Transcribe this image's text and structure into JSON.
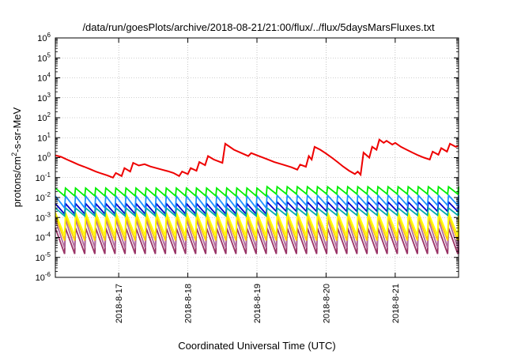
{
  "chart_data": {
    "type": "line",
    "title": "/data/run/goesPlots/archive/2018-08-21/21:00/flux/../flux/5daysMarsFluxes.txt",
    "xlabel": "Coordinated Universal Time (UTC)",
    "ylabel": "protons/cm2-s-sr-MeV",
    "ylabel_parts": {
      "base": "protons/cm",
      "sup": "2",
      "rest": "-s-sr-MeV"
    },
    "y_scale": "log",
    "ylim": [
      1e-06,
      1000000.0
    ],
    "y_ticks": [
      {
        "exp": "-6",
        "value": 1e-06
      },
      {
        "exp": "-5",
        "value": 1e-05
      },
      {
        "exp": "-4",
        "value": 0.0001
      },
      {
        "exp": "-3",
        "value": 0.001
      },
      {
        "exp": "-2",
        "value": 0.01
      },
      {
        "exp": "-1",
        "value": 0.1
      },
      {
        "exp": "0",
        "value": 1
      },
      {
        "exp": "1",
        "value": 10
      },
      {
        "exp": "2",
        "value": 100
      },
      {
        "exp": "3",
        "value": 1000
      },
      {
        "exp": "4",
        "value": 10000
      },
      {
        "exp": "5",
        "value": 100000
      },
      {
        "exp": "6",
        "value": 1000000
      }
    ],
    "y_tick_base": "10",
    "xlim": [
      "2018-08-16 02:00",
      "2018-08-21 22:00"
    ],
    "x_ticks": [
      {
        "label": "2018-8-17",
        "value": "2018-08-17 00:00"
      },
      {
        "label": "2018-8-18",
        "value": "2018-08-18 00:00"
      },
      {
        "label": "2018-8-19",
        "value": "2018-08-19 00:00"
      },
      {
        "label": "2018-8-20",
        "value": "2018-08-20 00:00"
      },
      {
        "label": "2018-8-21",
        "value": "2018-08-21 00:00"
      }
    ],
    "grid": true,
    "legend": "none",
    "series": [
      {
        "color": "#ee0000",
        "points": [
          [
            "2018-08-16 02:00",
            1.3
          ],
          [
            "2018-08-16 04:00",
            1.1
          ],
          [
            "2018-08-16 06:00",
            0.8
          ],
          [
            "2018-08-16 08:00",
            0.6
          ],
          [
            "2018-08-16 10:00",
            0.45
          ],
          [
            "2018-08-16 12:00",
            0.35
          ],
          [
            "2018-08-16 14:00",
            0.27
          ],
          [
            "2018-08-16 16:00",
            0.2
          ],
          [
            "2018-08-16 18:00",
            0.16
          ],
          [
            "2018-08-16 20:00",
            0.13
          ],
          [
            "2018-08-16 22:00",
            0.1
          ],
          [
            "2018-08-16 23:00",
            0.17
          ],
          [
            "2018-08-17 01:00",
            0.12
          ],
          [
            "2018-08-17 02:00",
            0.3
          ],
          [
            "2018-08-17 04:00",
            0.2
          ],
          [
            "2018-08-17 05:00",
            0.55
          ],
          [
            "2018-08-17 07:00",
            0.4
          ],
          [
            "2018-08-17 09:00",
            0.47
          ],
          [
            "2018-08-17 11:00",
            0.36
          ],
          [
            "2018-08-17 13:00",
            0.3
          ],
          [
            "2018-08-17 15:00",
            0.25
          ],
          [
            "2018-08-17 17:00",
            0.21
          ],
          [
            "2018-08-17 19:00",
            0.17
          ],
          [
            "2018-08-17 21:00",
            0.12
          ],
          [
            "2018-08-17 22:00",
            0.2
          ],
          [
            "2018-08-18 00:00",
            0.15
          ],
          [
            "2018-08-18 01:00",
            0.3
          ],
          [
            "2018-08-18 03:00",
            0.22
          ],
          [
            "2018-08-18 04:00",
            0.6
          ],
          [
            "2018-08-18 06:00",
            0.42
          ],
          [
            "2018-08-18 07:00",
            1.2
          ],
          [
            "2018-08-18 09:00",
            0.8
          ],
          [
            "2018-08-18 12:00",
            0.55
          ],
          [
            "2018-08-18 13:00",
            5.0
          ],
          [
            "2018-08-18 16:00",
            2.5
          ],
          [
            "2018-08-18 19:00",
            1.6
          ],
          [
            "2018-08-18 21:00",
            1.2
          ],
          [
            "2018-08-18 22:00",
            1.7
          ],
          [
            "2018-08-19 00:00",
            1.3
          ],
          [
            "2018-08-19 03:00",
            0.9
          ],
          [
            "2018-08-19 06:00",
            0.6
          ],
          [
            "2018-08-19 09:00",
            0.45
          ],
          [
            "2018-08-19 12:00",
            0.33
          ],
          [
            "2018-08-19 14:00",
            0.25
          ],
          [
            "2018-08-19 15:00",
            0.45
          ],
          [
            "2018-08-19 17:00",
            0.35
          ],
          [
            "2018-08-19 18:00",
            1.2
          ],
          [
            "2018-08-19 19:00",
            0.8
          ],
          [
            "2018-08-19 20:00",
            3.5
          ],
          [
            "2018-08-19 22:00",
            2.5
          ],
          [
            "2018-08-20 00:00",
            1.6
          ],
          [
            "2018-08-20 02:00",
            1.0
          ],
          [
            "2018-08-20 04:00",
            0.6
          ],
          [
            "2018-08-20 06:00",
            0.35
          ],
          [
            "2018-08-20 08:00",
            0.22
          ],
          [
            "2018-08-20 10:00",
            0.15
          ],
          [
            "2018-08-20 11:00",
            0.2
          ],
          [
            "2018-08-20 12:00",
            0.14
          ],
          [
            "2018-08-20 13:00",
            1.8
          ],
          [
            "2018-08-20 15:00",
            1.0
          ],
          [
            "2018-08-20 16:00",
            3.5
          ],
          [
            "2018-08-20 17:30",
            2.5
          ],
          [
            "2018-08-20 18:30",
            8.0
          ],
          [
            "2018-08-20 20:00",
            5.5
          ],
          [
            "2018-08-20 21:00",
            7.0
          ],
          [
            "2018-08-20 23:00",
            4.5
          ],
          [
            "2018-08-21 00:00",
            5.5
          ],
          [
            "2018-08-21 02:00",
            3.5
          ],
          [
            "2018-08-21 04:00",
            2.5
          ],
          [
            "2018-08-21 06:00",
            1.8
          ],
          [
            "2018-08-21 08:00",
            1.3
          ],
          [
            "2018-08-21 10:00",
            1.0
          ],
          [
            "2018-08-21 12:00",
            0.8
          ],
          [
            "2018-08-21 13:00",
            2.0
          ],
          [
            "2018-08-21 15:00",
            1.4
          ],
          [
            "2018-08-21 16:00",
            3.0
          ],
          [
            "2018-08-21 18:00",
            2.0
          ],
          [
            "2018-08-21 19:00",
            5.0
          ],
          [
            "2018-08-21 21:00",
            3.5
          ],
          [
            "2018-08-21 22:00",
            4.0
          ]
        ]
      },
      {
        "color": "#00ee00",
        "sawtooth": {
          "period_hours": 3.5,
          "high": 0.03,
          "low": 0.012,
          "high_late": 0.035,
          "low_late": 0.015
        }
      },
      {
        "color": "#1e90ff",
        "sawtooth": {
          "period_hours": 3.5,
          "high": 0.012,
          "low": 0.003,
          "high_late": 0.013,
          "low_late": 0.004
        }
      },
      {
        "color": "#00aaaa",
        "sawtooth": {
          "period_hours": 3.5,
          "high": 0.003,
          "low": 0.0012,
          "high_late": 0.003,
          "low_late": 0.0013
        }
      },
      {
        "color": "#0000cc",
        "sawtooth": {
          "period_hours": 3.5,
          "high": 0.005,
          "low": 0.0015,
          "high_late": 0.006,
          "low_late": 0.002
        }
      },
      {
        "color": "#ffff00",
        "sawtooth": {
          "period_hours": 3.5,
          "high": 0.0018,
          "low": 0.00012,
          "high_late": 0.0018,
          "low_late": 0.00012
        }
      },
      {
        "color": "#ffcc00",
        "sawtooth": {
          "period_hours": 3.5,
          "high": 0.0012,
          "low": 7e-05,
          "high_late": 0.0012,
          "low_late": 7e-05
        }
      },
      {
        "color": "#b36b9e",
        "sawtooth": {
          "period_hours": 3.5,
          "high": 0.0008,
          "low": 3e-05,
          "high_late": 0.0008,
          "low_late": 3e-05
        }
      },
      {
        "color": "#993366",
        "sawtooth": {
          "period_hours": 3.5,
          "high": 0.0003,
          "low": 1.5e-05,
          "high_late": 0.0003,
          "low_late": 1.5e-05
        }
      }
    ]
  }
}
